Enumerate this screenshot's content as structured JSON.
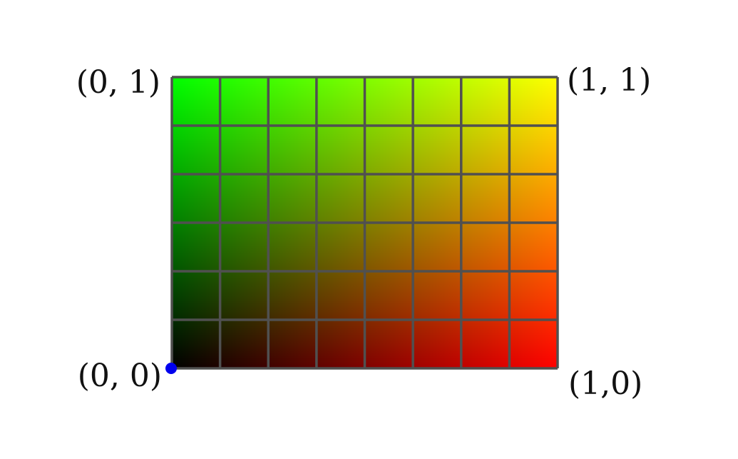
{
  "diagram": {
    "grid": {
      "columns": 8,
      "rows": 6,
      "line_color": "#505050",
      "bottom_left_color": "#000000",
      "bottom_right_color": "#ff0000",
      "top_left_color": "#00ff00",
      "top_right_color": "#ffff00"
    },
    "corner_labels": {
      "top_left": "(0, 1)",
      "top_right": "(1, 1)",
      "bottom_left": "(0, 0)",
      "bottom_right": "(1,0)"
    },
    "origin_marker": {
      "color": "#0000ee"
    }
  }
}
